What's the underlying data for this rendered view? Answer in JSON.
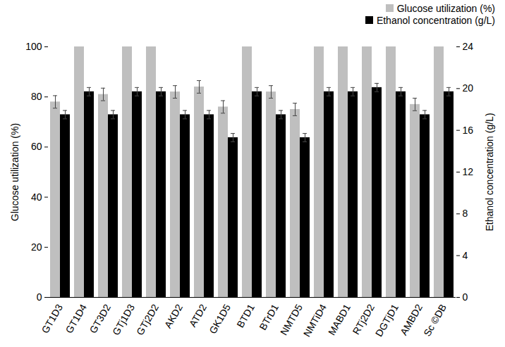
{
  "chart_data": {
    "type": "bar",
    "categories": [
      "GT1D3",
      "GT1D4",
      "GT3D2",
      "GTj1D3",
      "GTj2D2",
      "AKD2",
      "ATD2",
      "GK1D5",
      "BTD1",
      "BTrD1",
      "NMTD5",
      "NMTiD4",
      "MABD1",
      "RTj2D2",
      "DGTjD1",
      "AMBD2",
      "Sc ©DB"
    ],
    "series": [
      {
        "name": "Glucose utilization (%)",
        "color": "#bfbfbf",
        "values": [
          78,
          100,
          81,
          100,
          100,
          82,
          84,
          76,
          100,
          82,
          75,
          100,
          100,
          100,
          100,
          77,
          100
        ],
        "errors": [
          2.5,
          0,
          2.5,
          0,
          0,
          2.5,
          2.5,
          2.5,
          0,
          2.5,
          2.5,
          0,
          0,
          0,
          0,
          2.5,
          0
        ]
      },
      {
        "name": "Ethanol concentration (g/L)",
        "color": "#000000",
        "axis": "y2",
        "values": [
          17.5,
          19.7,
          17.5,
          19.7,
          19.7,
          17.5,
          17.5,
          15.3,
          19.7,
          17.5,
          15.3,
          19.7,
          19.7,
          20.1,
          19.7,
          17.5,
          19.7
        ],
        "errors": [
          0.4,
          0.4,
          0.4,
          0.4,
          0.4,
          0.4,
          0.4,
          0.4,
          0.4,
          0.4,
          0.4,
          0.4,
          0.4,
          0.4,
          0.4,
          0.4,
          0.4
        ]
      }
    ],
    "ylabel": "Glucose utilization (%)",
    "y2label": "Ethanol concentration (g/L)",
    "ylim": [
      0,
      100
    ],
    "yticks": [
      0,
      20,
      40,
      60,
      80,
      100
    ],
    "y2lim": [
      0,
      24
    ],
    "y2ticks": [
      0,
      4,
      8,
      12,
      16,
      20,
      24
    ],
    "legend": "top-right"
  }
}
